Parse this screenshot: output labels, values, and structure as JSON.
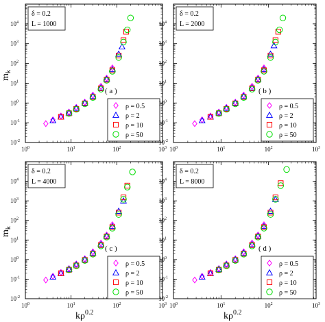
{
  "figure": {
    "ylabel": "m",
    "ylabel_subscript": "k",
    "xlabel": "kρ",
    "xlabel_superscript": "0.2"
  },
  "panels": [
    {
      "id": "a",
      "tag": "( a )",
      "delta_text": "δ = 0.2",
      "L_text": "L = 1000"
    },
    {
      "id": "b",
      "tag": "( b )",
      "delta_text": "δ = 0.2",
      "L_text": "L = 2000"
    },
    {
      "id": "c",
      "tag": "( c )",
      "delta_text": "δ = 0.2",
      "L_text": "L = 4000"
    },
    {
      "id": "d",
      "tag": "( d )",
      "delta_text": "δ = 0.2",
      "L_text": "L = 8000"
    }
  ],
  "legend": [
    {
      "label": "ρ = 0.5",
      "marker": "diamond",
      "color": "#ff00ff"
    },
    {
      "label": "ρ = 2",
      "marker": "triangle",
      "color": "#0000ff"
    },
    {
      "label": "ρ = 10",
      "marker": "square",
      "color": "#ff0000"
    },
    {
      "label": "ρ = 50",
      "marker": "circle",
      "color": "#00dd00"
    }
  ],
  "axes": {
    "x_ticks": [
      "10",
      "10",
      "10",
      "10"
    ],
    "x_tick_exponents": [
      "0",
      "1",
      "2",
      "3"
    ],
    "y_ticks": [
      "10",
      "10",
      "10",
      "10",
      "10",
      "10",
      "10"
    ],
    "y_tick_exponents": [
      "-2",
      "-1",
      "0",
      "1",
      "2",
      "3",
      "4"
    ]
  },
  "chart_data": [
    {
      "type": "scatter",
      "panel": "a",
      "scale": "log-log",
      "xlim": [
        1,
        1000
      ],
      "ylim": [
        0.01,
        100000
      ],
      "series": [
        {
          "name": "ρ = 0.5",
          "x": [
            2.8,
            4,
            6,
            9,
            13,
            20,
            30,
            45,
            60,
            80
          ],
          "y": [
            0.09,
            0.14,
            0.22,
            0.35,
            0.6,
            1.1,
            2.5,
            7,
            18,
            60
          ]
        },
        {
          "name": "ρ = 2",
          "x": [
            4,
            6,
            9,
            13,
            20,
            30,
            45,
            60,
            80,
            110,
            130
          ],
          "y": [
            0.13,
            0.2,
            0.32,
            0.55,
            1.0,
            2.2,
            6,
            16,
            50,
            300,
            700
          ]
        },
        {
          "name": "ρ = 10",
          "x": [
            6,
            9,
            13,
            20,
            30,
            45,
            60,
            80,
            110,
            140,
            160
          ],
          "y": [
            0.2,
            0.3,
            0.5,
            0.95,
            2.0,
            5.5,
            15,
            45,
            250,
            1500,
            4000
          ]
        },
        {
          "name": "ρ = 50",
          "x": [
            9,
            13,
            20,
            30,
            45,
            60,
            80,
            110,
            140,
            170,
            200
          ],
          "y": [
            0.3,
            0.48,
            0.9,
            1.9,
            5,
            14,
            40,
            200,
            1200,
            5000,
            20000
          ]
        }
      ]
    },
    {
      "type": "scatter",
      "panel": "b",
      "scale": "log-log",
      "xlim": [
        1,
        1000
      ],
      "ylim": [
        0.01,
        100000
      ],
      "series": [
        {
          "name": "ρ = 0.5",
          "x": [
            2.8,
            4,
            6,
            9,
            13,
            20,
            30,
            45,
            60,
            80
          ],
          "y": [
            0.09,
            0.14,
            0.22,
            0.35,
            0.6,
            1.1,
            2.5,
            7,
            18,
            60
          ]
        },
        {
          "name": "ρ = 2",
          "x": [
            4,
            6,
            9,
            13,
            20,
            30,
            45,
            60,
            80,
            110,
            130
          ],
          "y": [
            0.13,
            0.2,
            0.32,
            0.55,
            1.0,
            2.2,
            6,
            16,
            50,
            300,
            800
          ]
        },
        {
          "name": "ρ = 10",
          "x": [
            6,
            9,
            13,
            20,
            30,
            45,
            60,
            80,
            110,
            140,
            160
          ],
          "y": [
            0.2,
            0.3,
            0.5,
            0.95,
            2.0,
            5.5,
            15,
            45,
            250,
            1500,
            4000
          ]
        },
        {
          "name": "ρ = 50",
          "x": [
            9,
            13,
            20,
            30,
            45,
            60,
            80,
            110,
            140,
            170,
            200
          ],
          "y": [
            0.3,
            0.48,
            0.9,
            1.9,
            5,
            14,
            40,
            200,
            1200,
            5000,
            20000
          ]
        }
      ]
    },
    {
      "type": "scatter",
      "panel": "c",
      "scale": "log-log",
      "xlim": [
        1,
        1000
      ],
      "ylim": [
        0.01,
        100000
      ],
      "series": [
        {
          "name": "ρ = 0.5",
          "x": [
            2.8,
            4,
            6,
            9,
            13,
            20,
            30,
            45,
            60,
            80
          ],
          "y": [
            0.09,
            0.14,
            0.22,
            0.35,
            0.6,
            1.1,
            2.5,
            7,
            18,
            60
          ]
        },
        {
          "name": "ρ = 2",
          "x": [
            4,
            6,
            9,
            13,
            20,
            30,
            45,
            60,
            80,
            110,
            140
          ],
          "y": [
            0.13,
            0.2,
            0.32,
            0.55,
            1.0,
            2.2,
            6,
            16,
            50,
            300,
            1000
          ]
        },
        {
          "name": "ρ = 10",
          "x": [
            6,
            9,
            13,
            20,
            30,
            45,
            60,
            80,
            110,
            140,
            170
          ],
          "y": [
            0.2,
            0.3,
            0.5,
            0.95,
            2.0,
            5.5,
            15,
            45,
            250,
            1500,
            6000
          ]
        },
        {
          "name": "ρ = 50",
          "x": [
            9,
            13,
            20,
            30,
            45,
            60,
            80,
            110,
            140,
            170,
            220
          ],
          "y": [
            0.3,
            0.48,
            0.9,
            1.9,
            5,
            14,
            40,
            200,
            1200,
            5000,
            30000
          ]
        }
      ]
    },
    {
      "type": "scatter",
      "panel": "d",
      "scale": "log-log",
      "xlim": [
        1,
        1000
      ],
      "ylim": [
        0.01,
        100000
      ],
      "series": [
        {
          "name": "ρ = 0.5",
          "x": [
            2.8,
            4,
            6,
            9,
            13,
            20,
            30,
            45,
            60,
            80
          ],
          "y": [
            0.09,
            0.14,
            0.22,
            0.35,
            0.6,
            1.1,
            2.5,
            7,
            18,
            60
          ]
        },
        {
          "name": "ρ = 2",
          "x": [
            4,
            6,
            9,
            13,
            20,
            30,
            45,
            60,
            80,
            110,
            140
          ],
          "y": [
            0.13,
            0.2,
            0.32,
            0.55,
            1.0,
            2.2,
            6,
            16,
            50,
            300,
            1200
          ]
        },
        {
          "name": "ρ = 10",
          "x": [
            6,
            9,
            13,
            20,
            30,
            45,
            60,
            80,
            110,
            140,
            180
          ],
          "y": [
            0.2,
            0.3,
            0.5,
            0.95,
            2.0,
            5.5,
            15,
            45,
            250,
            1500,
            8000
          ]
        },
        {
          "name": "ρ = 50",
          "x": [
            9,
            13,
            20,
            30,
            45,
            60,
            80,
            110,
            140,
            180,
            240
          ],
          "y": [
            0.3,
            0.48,
            0.9,
            1.9,
            5,
            14,
            40,
            200,
            1200,
            6000,
            40000
          ]
        }
      ]
    }
  ]
}
